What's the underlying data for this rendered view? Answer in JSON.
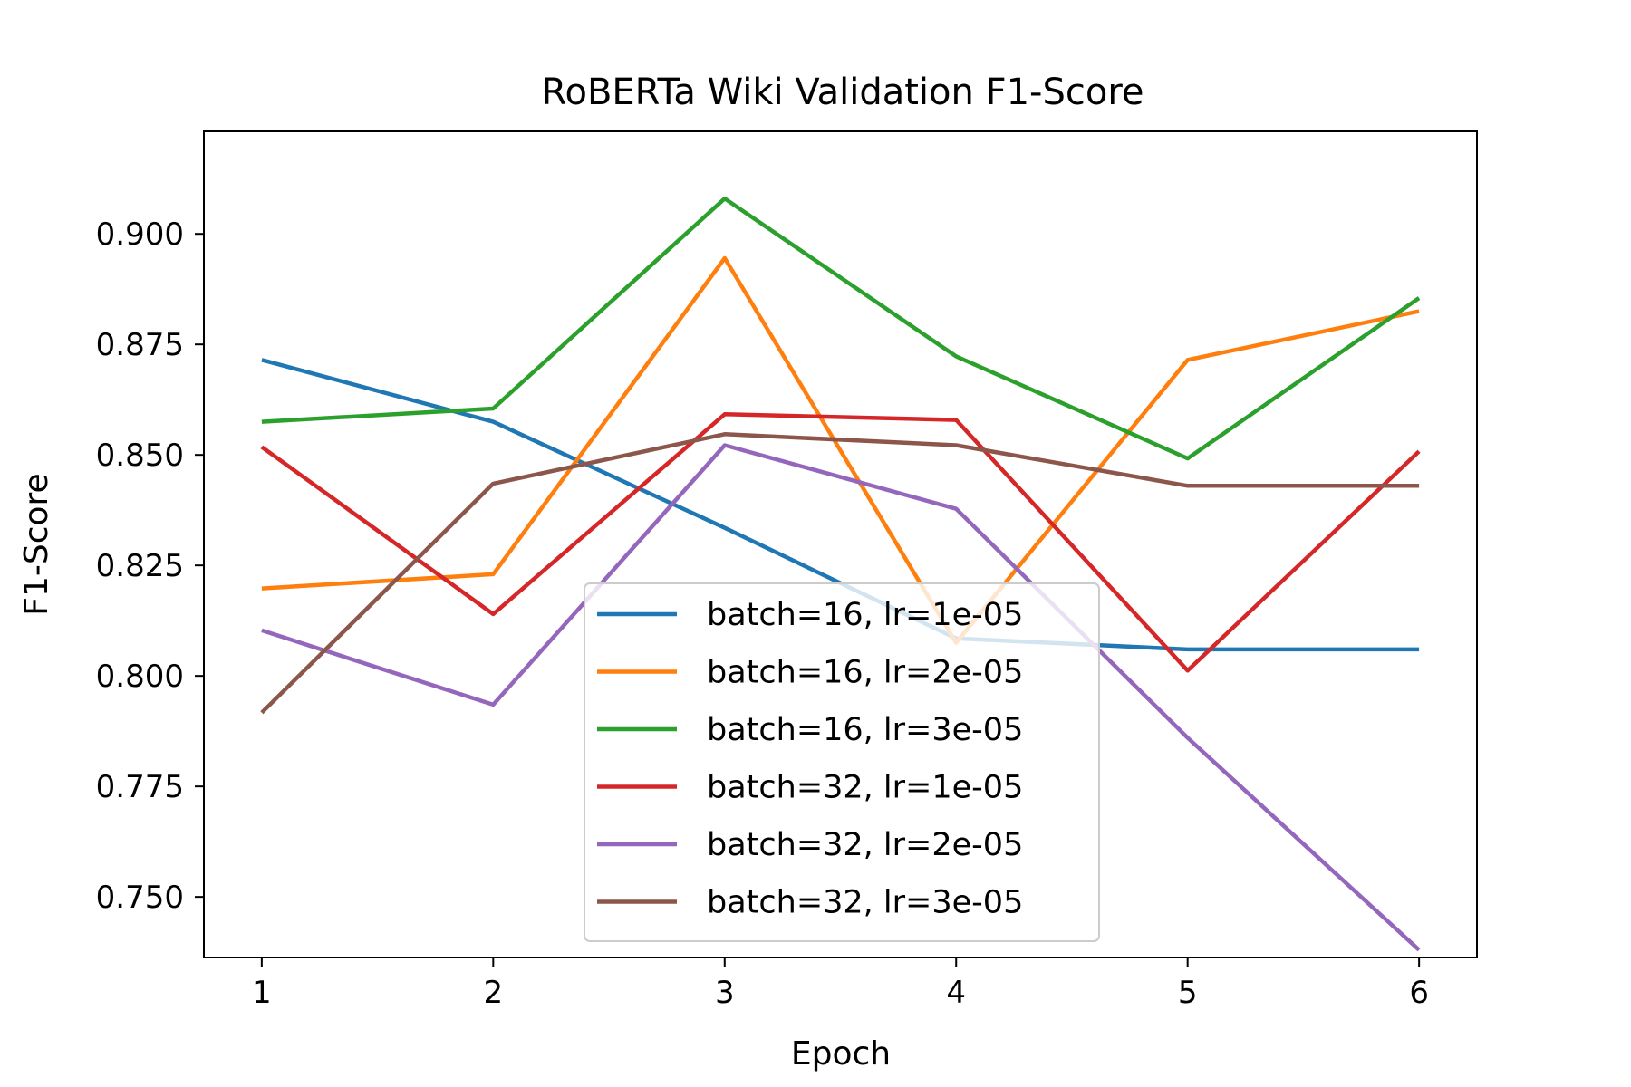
{
  "chart_data": {
    "type": "line",
    "title": "RoBERTa Wiki Validation F1-Score",
    "xlabel": "Epoch",
    "ylabel": "F1-Score",
    "x": [
      1,
      2,
      3,
      4,
      5,
      6
    ],
    "xticks": [
      "1",
      "2",
      "3",
      "4",
      "5",
      "6"
    ],
    "xlim": [
      0.75,
      6.25
    ],
    "yticks": [
      "0.750",
      "0.775",
      "0.800",
      "0.825",
      "0.850",
      "0.875",
      "0.900"
    ],
    "ylim": [
      0.7363,
      0.9232
    ],
    "grid": false,
    "legend_position": "lower center",
    "series": [
      {
        "name": "batch=16, lr=1e-05",
        "color": "#1f77b4",
        "values": [
          0.8715,
          0.8575,
          0.8335,
          0.8085,
          0.806,
          0.806
        ]
      },
      {
        "name": "batch=16, lr=2e-05",
        "color": "#ff7f0e",
        "values": [
          0.8198,
          0.823,
          0.8945,
          0.8075,
          0.8715,
          0.8825
        ]
      },
      {
        "name": "batch=16, lr=3e-05",
        "color": "#2ca02c",
        "values": [
          0.8575,
          0.8605,
          0.908,
          0.8723,
          0.8492,
          0.8855
        ]
      },
      {
        "name": "batch=32, lr=1e-05",
        "color": "#d62728",
        "values": [
          0.8518,
          0.814,
          0.8592,
          0.8579,
          0.8012,
          0.8508
        ]
      },
      {
        "name": "batch=32, lr=2e-05",
        "color": "#9467bd",
        "values": [
          0.8103,
          0.7935,
          0.8522,
          0.8378,
          0.786,
          0.738
        ]
      },
      {
        "name": "batch=32, lr=3e-05",
        "color": "#8c564b",
        "values": [
          0.7917,
          0.8435,
          0.8547,
          0.8522,
          0.843,
          0.843
        ]
      }
    ]
  }
}
